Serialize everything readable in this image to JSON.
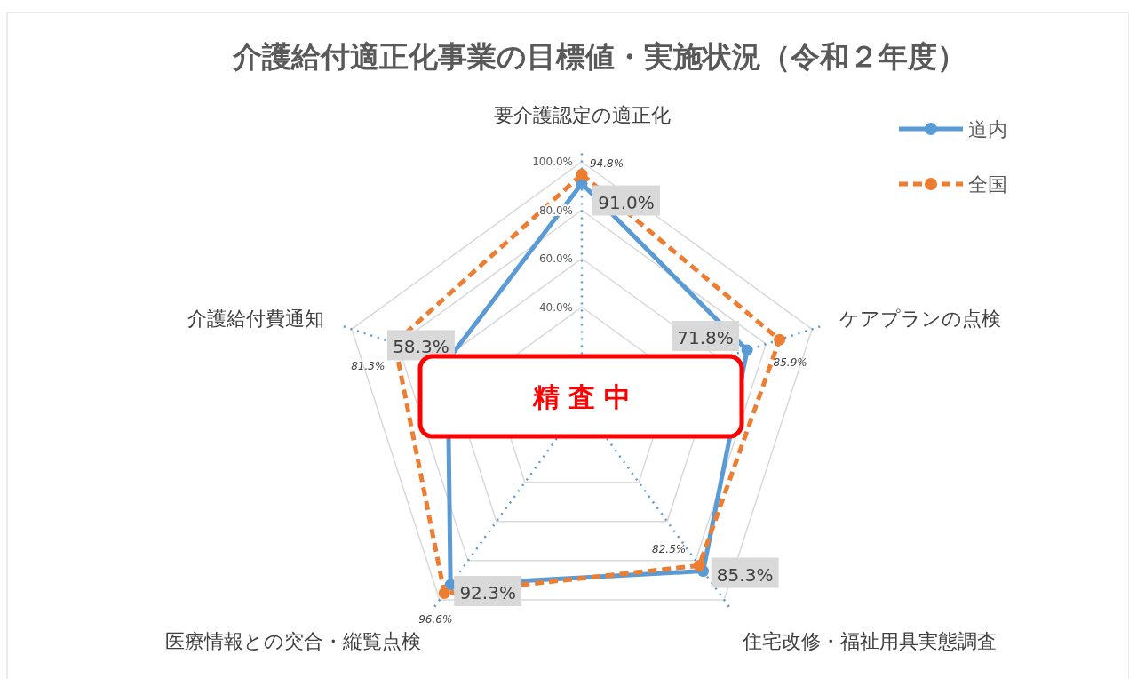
{
  "chart_data": {
    "type": "radar",
    "title": "介護給付適正化事業の目標値・実施状況（令和２年度）",
    "categories": [
      "要介護認定の適正化",
      "ケアプランの点検",
      "住宅改修・福祉用具実態調査",
      "医療情報との突合・縦覧点検",
      "介護給付費通知"
    ],
    "series": [
      {
        "name": "道内",
        "color": "#5b9bd5",
        "line_style": "solid",
        "values": [
          91.0,
          71.8,
          85.3,
          92.3,
          58.3
        ],
        "value_labels": [
          "91.0%",
          "71.8%",
          "85.3%",
          "92.3%",
          "58.3%"
        ]
      },
      {
        "name": "全国",
        "color": "#ed7d31",
        "line_style": "dashed",
        "values": [
          94.8,
          85.9,
          82.5,
          96.6,
          81.3
        ],
        "value_labels": [
          "94.8%",
          "85.9%",
          "82.5%",
          "96.6%",
          "81.3%"
        ]
      }
    ],
    "ylim": [
      0,
      100
    ],
    "yticks": [
      {
        "value": 40,
        "label": "40.0%"
      },
      {
        "value": 60,
        "label": "60.0%"
      },
      {
        "value": 80,
        "label": "80.0%"
      },
      {
        "value": 100,
        "label": "100.0%"
      }
    ],
    "marker": "circle",
    "legend": "top right",
    "annotations": [
      "精 査 中"
    ]
  }
}
